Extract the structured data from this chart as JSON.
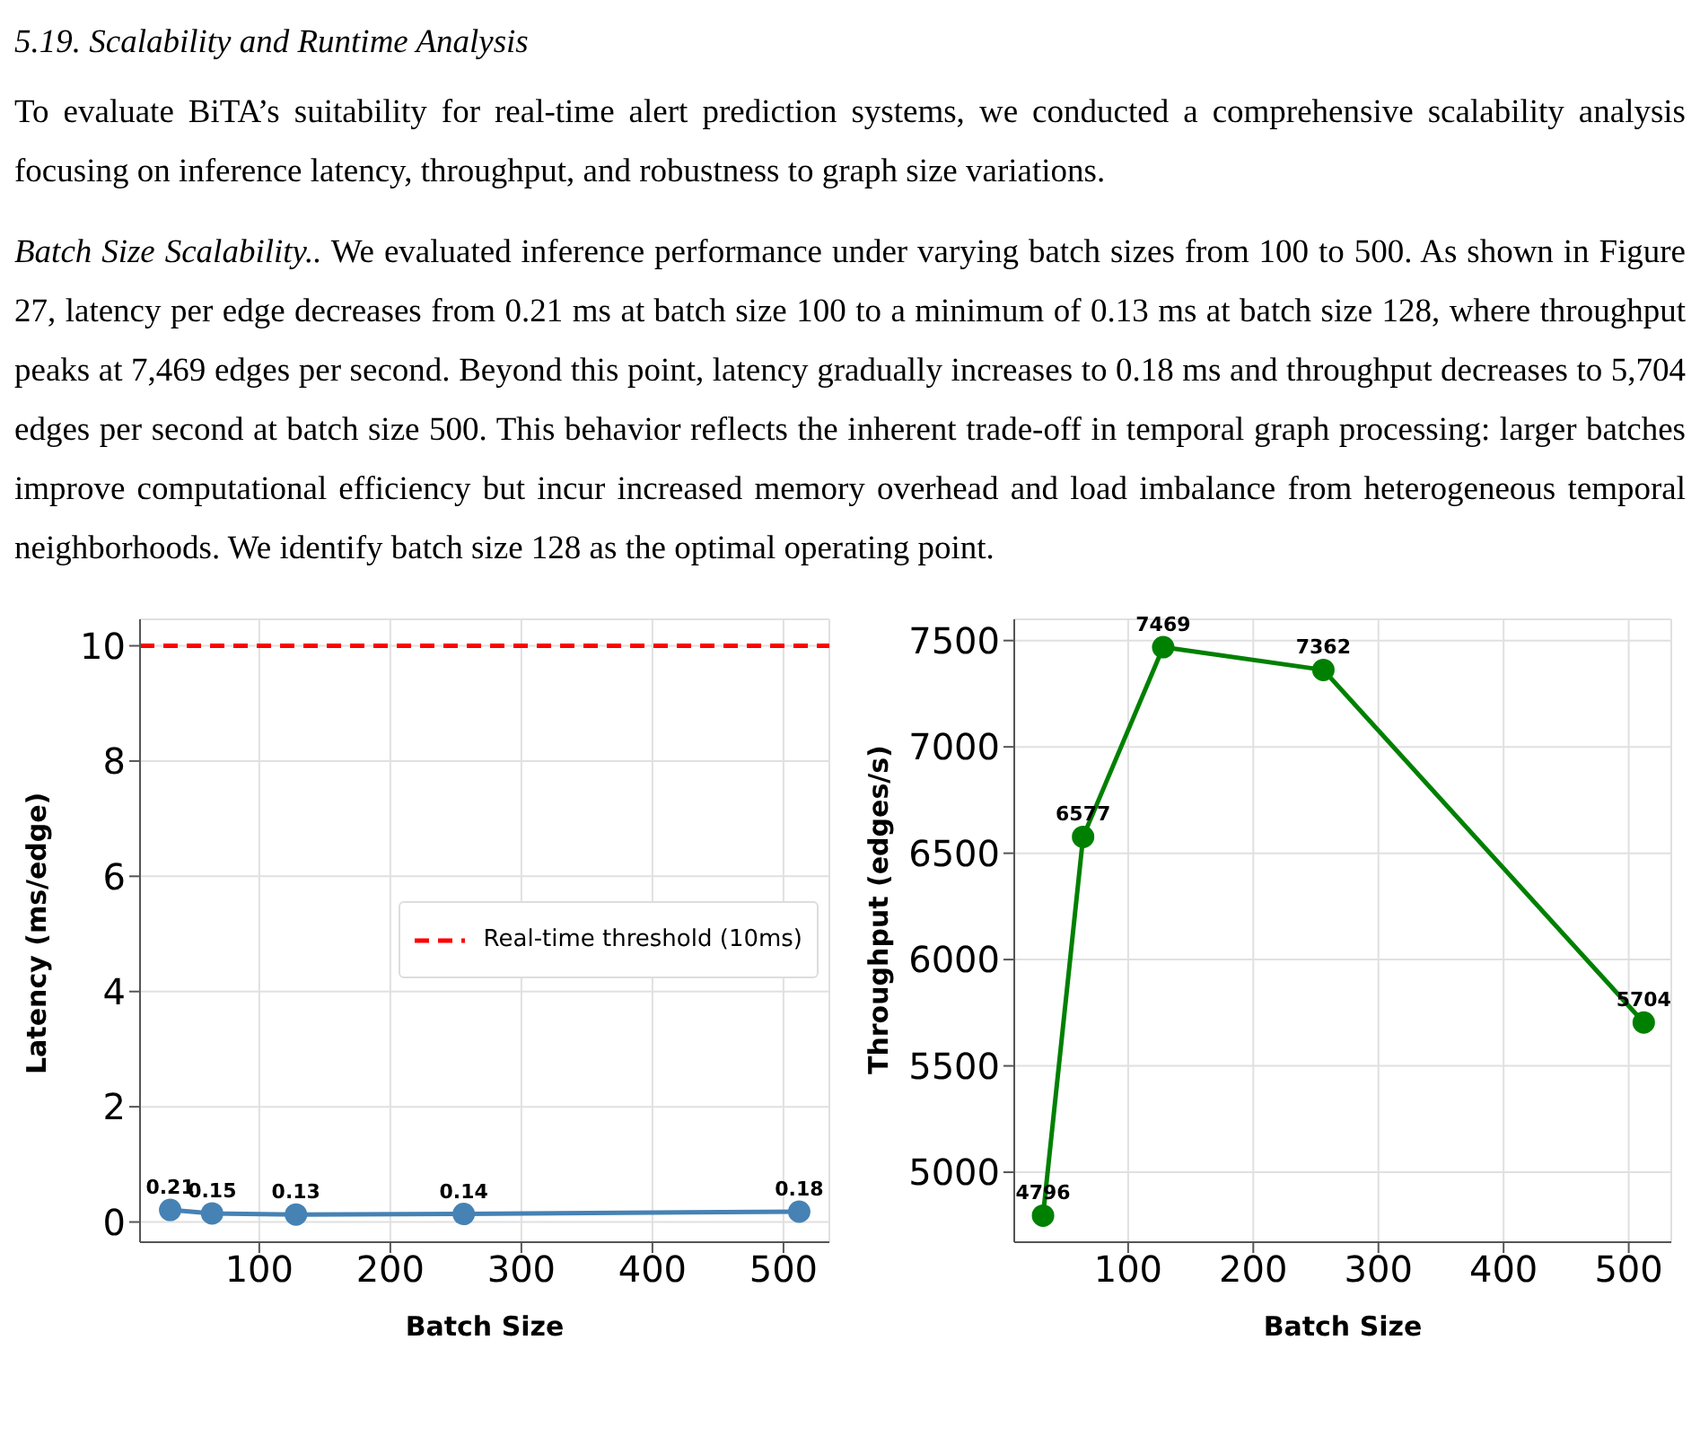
{
  "chart_data": [
    {
      "type": "line",
      "annotations": [
        "5.19. Scalability and Runtime Analysis",
        "To evaluate BiTA’s suitability for real-time alert prediction systems, we conducted a comprehensive scalability analysis focusing on inference latency, throughput, and robustness to graph size variations.",
        "Batch Size Scalability..",
        "We evaluated inference performance under varying batch sizes from 100 to 500. As shown in Figure 27, latency per edge decreases from 0.21 ms at batch size 100 to a minimum of 0.13 ms at batch size 128, where throughput peaks at 7,469 edges per second. Beyond this point, latency gradually increases to 0.18 ms and throughput decreases to 5,704 edges per second at batch size 500. This behavior reflects the inherent trade-off in temporal graph processing: larger batches improve computational efficiency but incur increased memory overhead and load imbalance from heterogeneous temporal neighborhoods. We identify batch size 128 as the optimal operating point."
      ],
      "xlabel": "Batch Size",
      "ylabel": "Latency (ms/edge)",
      "x": [
        32,
        64,
        128,
        256,
        512
      ],
      "series": [
        {
          "color": "#4682b4",
          "values": [
            0.21,
            0.15,
            0.13,
            0.14,
            0.18
          ]
        }
      ],
      "xlim": [
        9,
        535
      ],
      "xticks": [
        100,
        200,
        300,
        400,
        500
      ],
      "ylim": [
        -0.35,
        10.46
      ],
      "yticks": [
        0,
        2,
        4,
        6,
        8,
        10
      ],
      "ref_lines": [
        {
          "axis": "y",
          "value": 10,
          "label": "Real-time threshold (10ms)",
          "color": "#ff0000",
          "line_style": "dashed"
        }
      ],
      "grid": true,
      "legend": "right",
      "marker": "circle",
      "data_labels": true
    },
    {
      "type": "line",
      "xlabel": "Batch Size",
      "ylabel": "Throughput (edges/s)",
      "x": [
        32,
        64,
        128,
        256,
        512
      ],
      "series": [
        {
          "color": "#008000",
          "values": [
            4796,
            6577,
            7469,
            7362,
            5704
          ]
        }
      ],
      "xlim": [
        9,
        534
      ],
      "xticks": [
        100,
        200,
        300,
        400,
        500
      ],
      "ylim": [
        4671,
        7600
      ],
      "yticks": [
        5000,
        5500,
        6000,
        6500,
        7000,
        7500
      ],
      "grid": true,
      "marker": "circle",
      "data_labels": true
    }
  ]
}
